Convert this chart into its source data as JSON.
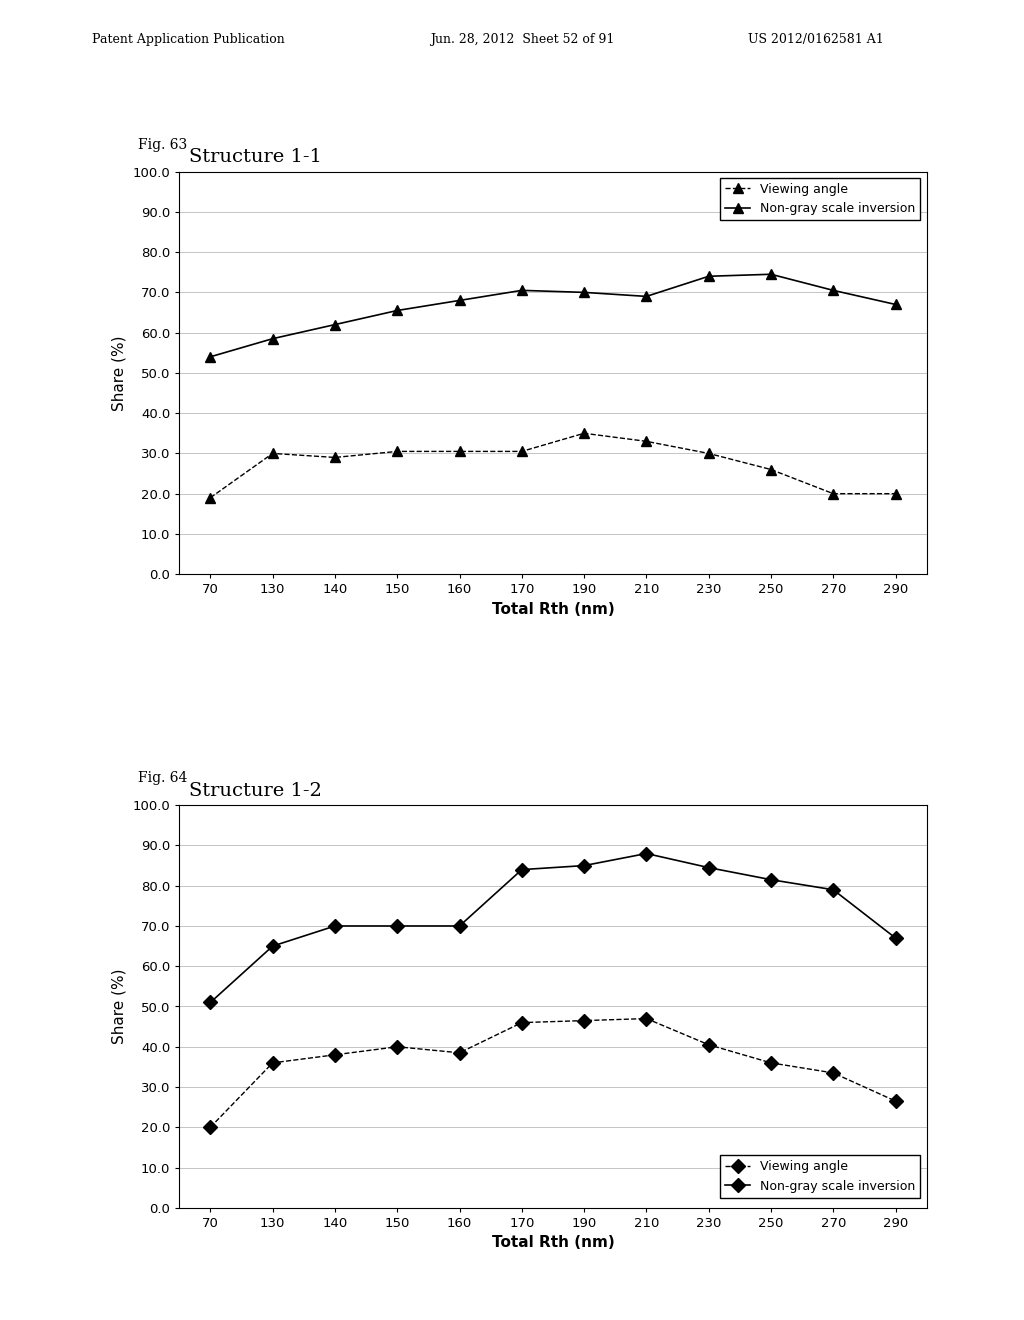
{
  "fig63": {
    "title": "Structure 1-1",
    "fig_label": "Fig. 63",
    "x_labels": [
      "70",
      "130",
      "140",
      "150",
      "160",
      "170",
      "190",
      "210",
      "230",
      "250",
      "270",
      "290"
    ],
    "viewing_angle": [
      19.0,
      30.0,
      29.0,
      30.5,
      30.5,
      30.5,
      35.0,
      33.0,
      30.0,
      26.0,
      20.0,
      20.0
    ],
    "non_gray": [
      54.0,
      58.5,
      62.0,
      65.5,
      68.0,
      70.5,
      70.0,
      69.0,
      74.0,
      74.5,
      70.5,
      67.0
    ],
    "legend_viewing": "Viewing angle",
    "legend_non_gray": "Non-gray scale inversion",
    "xlabel": "Total Rth (nm)",
    "ylabel": "Share (%)",
    "ylim": [
      0.0,
      100.0
    ],
    "yticks": [
      0.0,
      10.0,
      20.0,
      30.0,
      40.0,
      50.0,
      60.0,
      70.0,
      80.0,
      90.0,
      100.0
    ]
  },
  "fig64": {
    "title": "Structure 1-2",
    "fig_label": "Fig. 64",
    "x_labels": [
      "70",
      "130",
      "140",
      "150",
      "160",
      "170",
      "190",
      "210",
      "230",
      "250",
      "270",
      "290"
    ],
    "viewing_angle": [
      20.0,
      36.0,
      38.0,
      40.0,
      38.5,
      46.0,
      46.5,
      47.0,
      40.5,
      36.0,
      33.5,
      26.5
    ],
    "non_gray": [
      51.0,
      65.0,
      70.0,
      70.0,
      70.0,
      84.0,
      85.0,
      88.0,
      84.5,
      81.5,
      79.0,
      67.0
    ],
    "legend_viewing": "Viewing angle",
    "legend_non_gray": "Non-gray scale inversion",
    "xlabel": "Total Rth (nm)",
    "ylabel": "Share (%)",
    "ylim": [
      0.0,
      100.0
    ],
    "yticks": [
      0.0,
      10.0,
      20.0,
      30.0,
      40.0,
      50.0,
      60.0,
      70.0,
      80.0,
      90.0,
      100.0
    ]
  },
  "background_color": "#ffffff"
}
